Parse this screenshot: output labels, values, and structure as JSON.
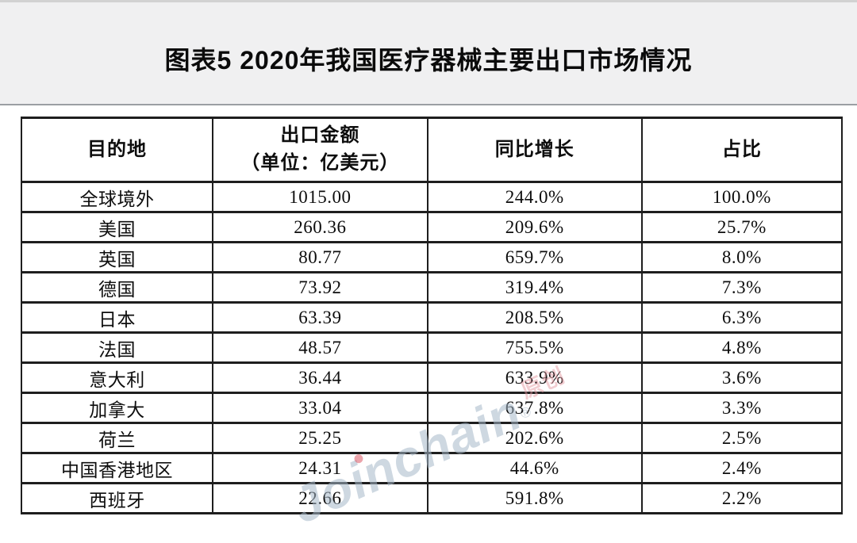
{
  "title": "图表5 2020年我国医疗器械主要出口市场情况",
  "watermark": {
    "text": "Joinchain",
    "reg_mark": "®",
    "suffix": "原创"
  },
  "colors": {
    "band_bg": "#f0f0f1",
    "band_divider": "#9b9fa3",
    "table_border": "#1e1e1e",
    "watermark_blue": "#a6b8c9",
    "watermark_pink": "#e2969e"
  },
  "chart_data": {
    "type": "table",
    "title": "图表5 2020年我国医疗器械主要出口市场情况",
    "columns": [
      "目的地",
      "出口金额（单位：亿美元）",
      "同比增长",
      "占比"
    ],
    "rows": [
      {
        "destination": "全球境外",
        "export_amount": 1015.0,
        "yoy_growth_pct": 244.0,
        "share_pct": 100.0
      },
      {
        "destination": "美国",
        "export_amount": 260.36,
        "yoy_growth_pct": 209.6,
        "share_pct": 25.7
      },
      {
        "destination": "英国",
        "export_amount": 80.77,
        "yoy_growth_pct": 659.7,
        "share_pct": 8.0
      },
      {
        "destination": "德国",
        "export_amount": 73.92,
        "yoy_growth_pct": 319.4,
        "share_pct": 7.3
      },
      {
        "destination": "日本",
        "export_amount": 63.39,
        "yoy_growth_pct": 208.5,
        "share_pct": 6.3
      },
      {
        "destination": "法国",
        "export_amount": 48.57,
        "yoy_growth_pct": 755.5,
        "share_pct": 4.8
      },
      {
        "destination": "意大利",
        "export_amount": 36.44,
        "yoy_growth_pct": 633.9,
        "share_pct": 3.6
      },
      {
        "destination": "加拿大",
        "export_amount": 33.04,
        "yoy_growth_pct": 637.8,
        "share_pct": 3.3
      },
      {
        "destination": "荷兰",
        "export_amount": 25.25,
        "yoy_growth_pct": 202.6,
        "share_pct": 2.5
      },
      {
        "destination": "中国香港地区",
        "export_amount": 24.31,
        "yoy_growth_pct": 44.6,
        "share_pct": 2.4
      },
      {
        "destination": "西班牙",
        "export_amount": 22.66,
        "yoy_growth_pct": 591.8,
        "share_pct": 2.2
      }
    ]
  },
  "table": {
    "headers": [
      "目的地",
      "出口金额\n（单位：亿美元）",
      "同比增长",
      "占比"
    ],
    "rows": [
      [
        "全球境外",
        "1015.00",
        "244.0%",
        "100.0%"
      ],
      [
        "美国",
        "260.36",
        "209.6%",
        "25.7%"
      ],
      [
        "英国",
        "80.77",
        "659.7%",
        "8.0%"
      ],
      [
        "德国",
        "73.92",
        "319.4%",
        "7.3%"
      ],
      [
        "日本",
        "63.39",
        "208.5%",
        "6.3%"
      ],
      [
        "法国",
        "48.57",
        "755.5%",
        "4.8%"
      ],
      [
        "意大利",
        "36.44",
        "633.9%",
        "3.6%"
      ],
      [
        "加拿大",
        "33.04",
        "637.8%",
        "3.3%"
      ],
      [
        "荷兰",
        "25.25",
        "202.6%",
        "2.5%"
      ],
      [
        "中国香港地区",
        "24.31",
        "44.6%",
        "2.4%"
      ],
      [
        "西班牙",
        "22.66",
        "591.8%",
        "2.2%"
      ]
    ]
  }
}
